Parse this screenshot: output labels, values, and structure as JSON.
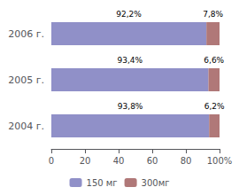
{
  "chart_data": {
    "type": "bar",
    "orientation": "horizontal",
    "stacked": true,
    "categories": [
      "2006 г.",
      "2005 г.",
      "2004 г."
    ],
    "series": [
      {
        "name": "150 мг",
        "color": "#9090c8",
        "values": [
          92.2,
          93.4,
          93.8
        ],
        "value_labels": [
          "92,2%",
          "93,4%",
          "93,8%"
        ]
      },
      {
        "name": "300мг",
        "color": "#b07878",
        "values": [
          7.8,
          6.6,
          6.2
        ],
        "value_labels": [
          "7,8%",
          "6,6%",
          "6,2%"
        ]
      }
    ],
    "xlim": [
      0,
      100
    ],
    "xticks": [
      0,
      20,
      40,
      60,
      80,
      {
        "value": 100,
        "label": "100%"
      }
    ],
    "data_labels": true,
    "grid": false,
    "legend": "bottom"
  }
}
